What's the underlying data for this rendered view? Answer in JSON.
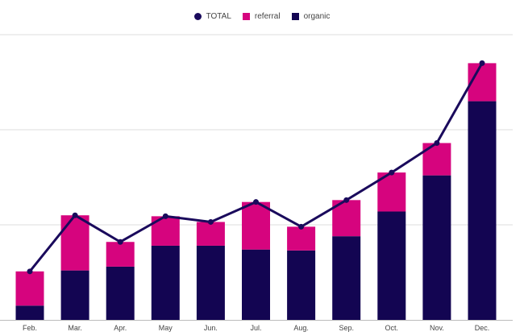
{
  "legend": {
    "total": "TOTAL",
    "referral": "referral",
    "organic": "organic"
  },
  "colors": {
    "total": "#1a0a5c",
    "referral": "#d6047e",
    "organic": "#130552",
    "grid": "#dddddd",
    "axis": "#bbbbbb"
  },
  "chart_data": {
    "type": "bar",
    "stacked": true,
    "categories": [
      "Feb.",
      "Mar.",
      "Apr.",
      "May",
      "Jun.",
      "Jul.",
      "Aug.",
      "Sep.",
      "Oct.",
      "Nov.",
      "Dec."
    ],
    "series": [
      {
        "name": "organic",
        "values": [
          15,
          52,
          56,
          78,
          78,
          74,
          73,
          88,
          114,
          152,
          230
        ]
      },
      {
        "name": "referral",
        "values": [
          36,
          58,
          26,
          31,
          25,
          50,
          25,
          38,
          41,
          34,
          40
        ]
      },
      {
        "name": "TOTAL",
        "type": "line",
        "values": [
          51,
          110,
          82,
          109,
          103,
          124,
          98,
          126,
          155,
          186,
          270
        ]
      }
    ],
    "ylim": [
      0,
      300
    ],
    "gridlines": [
      100,
      200,
      300
    ],
    "y_tick_labels_shown": false,
    "grid": true,
    "legend_position": "top-center",
    "title": "",
    "xlabel": "",
    "ylabel": ""
  }
}
